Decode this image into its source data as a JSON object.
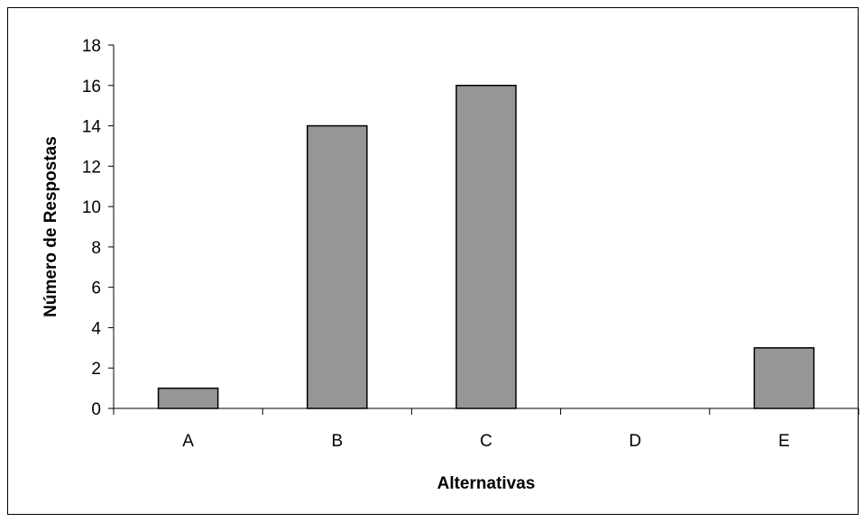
{
  "chart_data": {
    "type": "bar",
    "title": "",
    "xlabel": "Alternativas",
    "ylabel": "Número de Respostas",
    "categories": [
      "A",
      "B",
      "C",
      "D",
      "E"
    ],
    "values": [
      1,
      14,
      16,
      0,
      3
    ],
    "ylim": [
      0,
      18
    ],
    "yticks": [
      0,
      2,
      4,
      6,
      8,
      10,
      12,
      14,
      16,
      18
    ],
    "grid": false,
    "legend": "none",
    "bar_color": "#969696",
    "bar_edge_color": "#000000"
  }
}
